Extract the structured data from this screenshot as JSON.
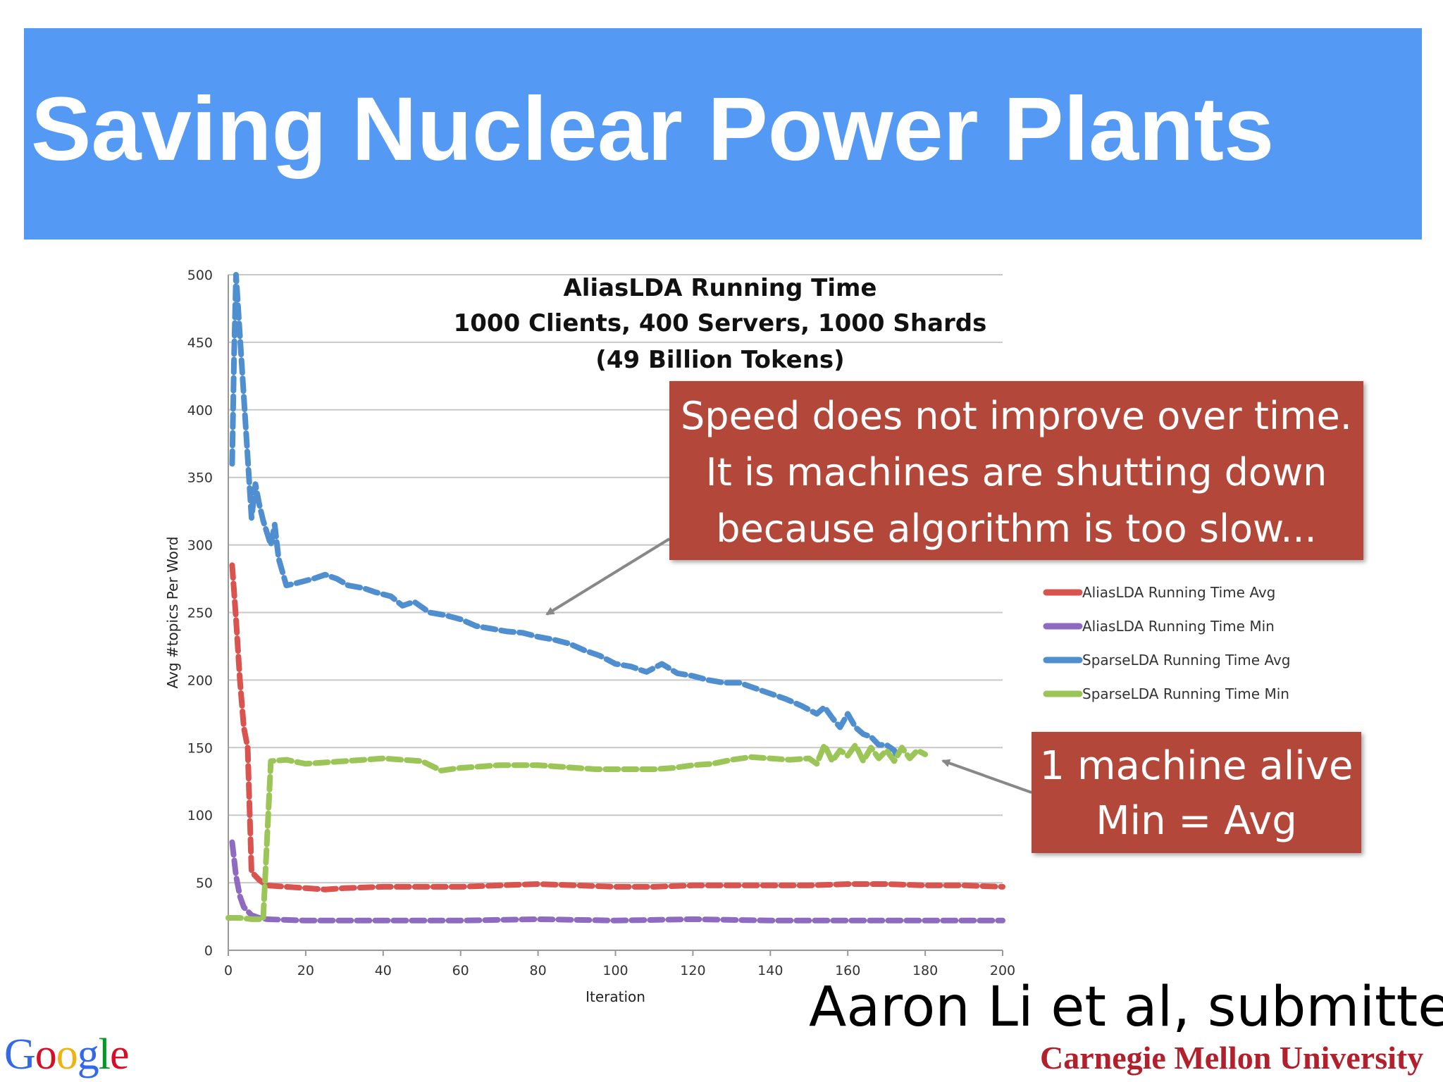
{
  "slide": {
    "title": "Saving Nuclear Power Plants",
    "banner_color": "#5499f4",
    "callout_color": "#b2473a",
    "callouts": [
      {
        "lines": [
          "Speed does not improve over time.",
          "It is machines are shutting down",
          "because algorithm is too slow..."
        ]
      },
      {
        "lines": [
          "1 machine alive",
          "Min = Avg"
        ]
      }
    ],
    "citation": "Aaron Li et al, submitted",
    "logos": {
      "google": "Google",
      "google_colors": [
        "#3369e8",
        "#d50f25",
        "#eeb211",
        "#3369e8",
        "#009925",
        "#d50f25"
      ],
      "cmu": "Carnegie Mellon University"
    }
  },
  "chart_data": {
    "type": "line",
    "title": [
      "AliasLDA Running Time",
      "1000 Clients, 400 Servers, 1000 Shards",
      "(49 Billion Tokens)"
    ],
    "xlabel": "Iteration",
    "ylabel": "Avg #topics Per Word",
    "xlim": [
      0,
      200
    ],
    "ylim": [
      0,
      500
    ],
    "xticks": [
      0,
      20,
      40,
      60,
      80,
      100,
      120,
      140,
      160,
      180,
      200
    ],
    "yticks": [
      0,
      50,
      100,
      150,
      200,
      250,
      300,
      350,
      400,
      450,
      500
    ],
    "grid": "horizontal",
    "legend_position": "right",
    "series": [
      {
        "name": "AliasLDA Running Time Avg",
        "color": "#d9534f",
        "style": "dashed",
        "points": [
          [
            1,
            285
          ],
          [
            2,
            245
          ],
          [
            3,
            200
          ],
          [
            4,
            165
          ],
          [
            5,
            150
          ],
          [
            6,
            58
          ],
          [
            8,
            52
          ],
          [
            10,
            48
          ],
          [
            15,
            47
          ],
          [
            20,
            46
          ],
          [
            25,
            45
          ],
          [
            30,
            46
          ],
          [
            40,
            47
          ],
          [
            50,
            47
          ],
          [
            60,
            47
          ],
          [
            70,
            48
          ],
          [
            80,
            49
          ],
          [
            90,
            48
          ],
          [
            100,
            47
          ],
          [
            110,
            47
          ],
          [
            120,
            48
          ],
          [
            130,
            48
          ],
          [
            140,
            48
          ],
          [
            150,
            48
          ],
          [
            160,
            49
          ],
          [
            170,
            49
          ],
          [
            180,
            48
          ],
          [
            190,
            48
          ],
          [
            200,
            47
          ]
        ]
      },
      {
        "name": "AliasLDA Running Time Min",
        "color": "#8e6bc1",
        "style": "dashed",
        "points": [
          [
            1,
            80
          ],
          [
            2,
            55
          ],
          [
            3,
            40
          ],
          [
            4,
            32
          ],
          [
            6,
            26
          ],
          [
            8,
            24
          ],
          [
            10,
            23
          ],
          [
            20,
            22
          ],
          [
            40,
            22
          ],
          [
            60,
            22
          ],
          [
            80,
            23
          ],
          [
            100,
            22
          ],
          [
            120,
            23
          ],
          [
            140,
            22
          ],
          [
            160,
            22
          ],
          [
            180,
            22
          ],
          [
            200,
            22
          ]
        ]
      },
      {
        "name": "SparseLDA Running Time Avg",
        "color": "#4f8fcf",
        "style": "dashed",
        "points": [
          [
            1,
            360
          ],
          [
            1.5,
            440
          ],
          [
            2,
            500
          ],
          [
            6,
            320
          ],
          [
            7,
            345
          ],
          [
            8,
            330
          ],
          [
            9,
            318
          ],
          [
            11,
            300
          ],
          [
            12,
            315
          ],
          [
            13,
            290
          ],
          [
            15,
            270
          ],
          [
            18,
            272
          ],
          [
            22,
            275
          ],
          [
            25,
            278
          ],
          [
            28,
            275
          ],
          [
            31,
            270
          ],
          [
            35,
            268
          ],
          [
            38,
            265
          ],
          [
            42,
            262
          ],
          [
            45,
            255
          ],
          [
            48,
            258
          ],
          [
            52,
            250
          ],
          [
            56,
            248
          ],
          [
            60,
            245
          ],
          [
            64,
            240
          ],
          [
            68,
            238
          ],
          [
            72,
            236
          ],
          [
            76,
            235
          ],
          [
            80,
            232
          ],
          [
            84,
            230
          ],
          [
            88,
            227
          ],
          [
            92,
            222
          ],
          [
            96,
            218
          ],
          [
            100,
            212
          ],
          [
            104,
            210
          ],
          [
            108,
            206
          ],
          [
            112,
            212
          ],
          [
            116,
            205
          ],
          [
            120,
            203
          ],
          [
            124,
            200
          ],
          [
            128,
            198
          ],
          [
            132,
            198
          ],
          [
            136,
            194
          ],
          [
            140,
            190
          ],
          [
            144,
            186
          ],
          [
            148,
            181
          ],
          [
            152,
            175
          ],
          [
            154,
            180
          ],
          [
            156,
            172
          ],
          [
            158,
            165
          ],
          [
            160,
            175
          ],
          [
            162,
            165
          ],
          [
            164,
            160
          ],
          [
            166,
            158
          ],
          [
            168,
            152
          ],
          [
            170,
            152
          ],
          [
            172,
            148
          ],
          [
            173,
            142
          ]
        ]
      },
      {
        "name": "SparseLDA Running Time Min",
        "color": "#9bc556",
        "style": "dashed",
        "points": [
          [
            0,
            24
          ],
          [
            3,
            24
          ],
          [
            6,
            23
          ],
          [
            9,
            23
          ],
          [
            11,
            140
          ],
          [
            15,
            141
          ],
          [
            20,
            138
          ],
          [
            25,
            139
          ],
          [
            30,
            140
          ],
          [
            35,
            141
          ],
          [
            40,
            142
          ],
          [
            45,
            141
          ],
          [
            50,
            140
          ],
          [
            55,
            133
          ],
          [
            60,
            135
          ],
          [
            65,
            136
          ],
          [
            70,
            137
          ],
          [
            75,
            137
          ],
          [
            80,
            137
          ],
          [
            85,
            136
          ],
          [
            90,
            135
          ],
          [
            95,
            134
          ],
          [
            100,
            134
          ],
          [
            105,
            134
          ],
          [
            110,
            134
          ],
          [
            115,
            135
          ],
          [
            120,
            137
          ],
          [
            125,
            138
          ],
          [
            130,
            141
          ],
          [
            135,
            143
          ],
          [
            140,
            142
          ],
          [
            145,
            141
          ],
          [
            150,
            142
          ],
          [
            152,
            138
          ],
          [
            154,
            152
          ],
          [
            156,
            140
          ],
          [
            158,
            148
          ],
          [
            160,
            144
          ],
          [
            162,
            152
          ],
          [
            164,
            140
          ],
          [
            166,
            150
          ],
          [
            168,
            142
          ],
          [
            170,
            148
          ],
          [
            172,
            140
          ],
          [
            174,
            150
          ],
          [
            176,
            142
          ],
          [
            178,
            148
          ],
          [
            180,
            145
          ]
        ]
      }
    ]
  }
}
